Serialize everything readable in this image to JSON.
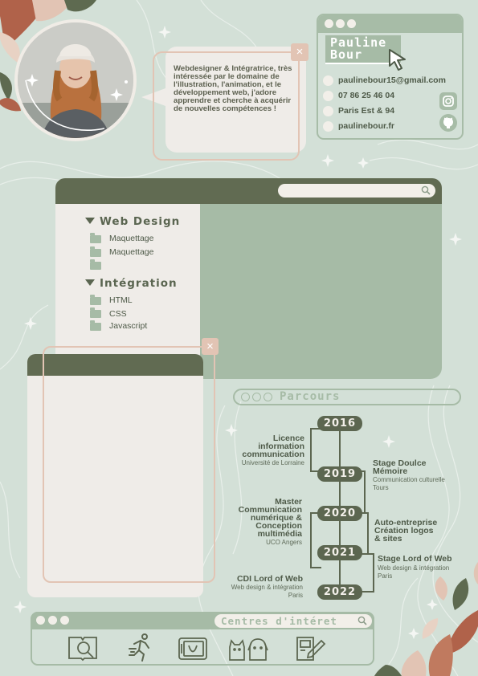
{
  "profile": {
    "bio": "Webdesigner & Intégratrice, très intéressée par le domaine de l'illustration, l'animation, et le développement web, j'adore apprendre et cherche à acquérir de nouvelles compétences !"
  },
  "contact": {
    "name_line1": "Pauline",
    "name_line2": "Bour",
    "email": "paulinebour15@gmail.com",
    "phone": "07 86 25 46 04",
    "location": "Paris Est & 94",
    "website": "paulinebour.fr",
    "icons": [
      "instagram-icon",
      "github-icon"
    ]
  },
  "skills": {
    "groups": [
      {
        "title": "Web Design",
        "items": [
          "Maquettage",
          "Maquettage",
          ""
        ]
      },
      {
        "title": "Intégration",
        "items": [
          "HTML",
          "CSS",
          "Javascript"
        ]
      }
    ]
  },
  "parcours": {
    "title": "Parcours",
    "years": [
      "2016",
      "2019",
      "2020",
      "2021",
      "2022"
    ],
    "left": [
      {
        "title": [
          "Licence",
          "information",
          "communication"
        ],
        "sub": [
          "Université de Lorraine"
        ]
      },
      {
        "title": [
          "Master",
          "Communication",
          "numérique &",
          "Conception",
          "multimédia"
        ],
        "sub": [
          "UCO Angers"
        ]
      },
      {
        "title": [
          "CDI Lord of Web"
        ],
        "sub": [
          "Web design & intégration",
          "Paris"
        ]
      }
    ],
    "right": [
      {
        "title": [
          "Stage Doulce",
          "Mémoire"
        ],
        "sub": [
          "Communication culturelle",
          "Tours"
        ]
      },
      {
        "title": [
          "Auto-entreprise",
          "Création logos",
          "& sites"
        ],
        "sub": []
      },
      {
        "title": [
          "Stage Lord of Web"
        ],
        "sub": [
          "Web design & intégration",
          "Paris"
        ]
      }
    ]
  },
  "interests": {
    "title": "Centres d'intéret",
    "icons": [
      "book-search-icon",
      "running-icon",
      "drawing-tablet-icon",
      "cat-dog-icon",
      "sketchbook-icon"
    ]
  },
  "colors": {
    "background": "#d3e0d7",
    "dark_green": "#616b52",
    "sage": "#a6bba6",
    "cream": "#efece8",
    "peach": "#e2c4b4",
    "rust": "#b0624a"
  }
}
